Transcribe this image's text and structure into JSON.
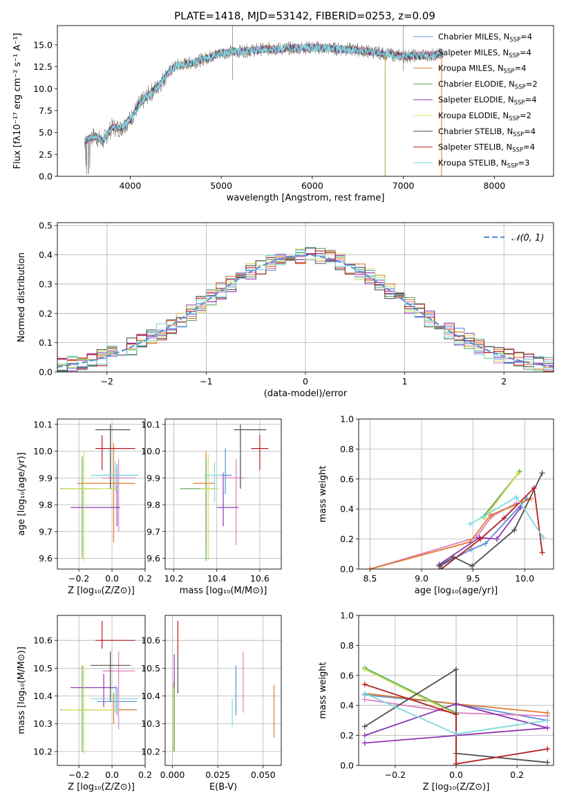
{
  "title": "PLATE=1418, MJD=53142, FIBERID=0253, z=0.09",
  "models": [
    {
      "label": "Chabrier MILES, N",
      "sub": "SSP",
      "suffix": "=4",
      "color": "#5b8fd6"
    },
    {
      "label": "Salpeter MILES, N",
      "sub": "SSP",
      "suffix": "=4",
      "color": "#e07cc1"
    },
    {
      "label": "Kroupa MILES, N",
      "sub": "SSP",
      "suffix": "=4",
      "color": "#e0792c"
    },
    {
      "label": "Chabrier ELODIE, N",
      "sub": "SSP",
      "suffix": "=2",
      "color": "#5fa65b"
    },
    {
      "label": "Salpeter ELODIE, N",
      "sub": "SSP",
      "suffix": "=4",
      "color": "#8e35b0"
    },
    {
      "label": "Kroupa ELODIE, N",
      "sub": "SSP",
      "suffix": "=2",
      "color": "#d3e05a"
    },
    {
      "label": "Chabrier STELIB, N",
      "sub": "SSP",
      "suffix": "=4",
      "color": "#4d4d4d"
    },
    {
      "label": "Salpeter STELIB, N",
      "sub": "SSP",
      "suffix": "=4",
      "color": "#b41b1b"
    },
    {
      "label": "Kroupa STELIB, N",
      "sub": "SSP",
      "suffix": "=3",
      "color": "#7dd9dd"
    }
  ],
  "chart_data": [
    {
      "id": "spectrum",
      "type": "line",
      "xlabel": "wavelength [Angstrom, rest frame]",
      "ylabel": "Flux [fλ10⁻¹⁷ erg cm⁻² s⁻¹ A⁻¹]",
      "xlim": [
        3200,
        8650
      ],
      "ylim": [
        0,
        17.2
      ],
      "xticks": [
        4000,
        5000,
        6000,
        7000,
        8000
      ],
      "yticks": [
        0.0,
        2.5,
        5.0,
        7.5,
        10.0,
        12.5,
        15.0
      ],
      "continuum": {
        "x": [
          3500,
          3600,
          3700,
          3800,
          3900,
          4000,
          4100,
          4200,
          4300,
          4400,
          4500,
          4700,
          5000,
          5500,
          6000,
          6500,
          7000,
          7400
        ],
        "y": [
          4.0,
          4.6,
          4.0,
          5.6,
          5.5,
          6.5,
          8.2,
          9.3,
          10.2,
          11.6,
          12.6,
          13.0,
          14.1,
          14.5,
          14.7,
          14.4,
          13.7,
          13.9
        ]
      }
    },
    {
      "id": "residuals",
      "type": "line",
      "xlabel": "(data-model)/error",
      "ylabel": "Normed distribution",
      "xlim": [
        -2.5,
        2.5
      ],
      "ylim": [
        0,
        0.51
      ],
      "xticks": [
        -2,
        -1,
        0,
        1,
        2
      ],
      "yticks": [
        0.0,
        0.1,
        0.2,
        0.3,
        0.4,
        0.5
      ],
      "legend": "𝒩(0, 1)",
      "legend_position": "top-right",
      "gaussian": {
        "mu": 0,
        "sigma": 1
      }
    },
    {
      "id": "age-vs-Z",
      "type": "scatter",
      "xlabel": "Z [log₁₀(Z/Z⊙)]",
      "ylabel": "age  [log₁₀(age/yr)]",
      "xlim": [
        -0.33,
        0.2
      ],
      "ylim": [
        9.56,
        10.12
      ],
      "xticks": [
        -0.2,
        0.0,
        0.2
      ],
      "yticks": [
        9.6,
        9.7,
        9.8,
        9.9,
        10.0,
        10.1
      ],
      "points": [
        {
          "x": 0.03,
          "xerr": [
            0.12,
            0.12
          ],
          "y": 9.91,
          "yerr": [
            0.07,
            0.04
          ],
          "model": 0
        },
        {
          "x": 0.04,
          "xerr": [
            0.1,
            0.1
          ],
          "y": 9.9,
          "yerr": [
            0.2,
            0.07
          ],
          "model": 1
        },
        {
          "x": 0.01,
          "xerr": [
            0.22,
            0.13
          ],
          "y": 9.88,
          "yerr": [
            0.22,
            0.15
          ],
          "model": 2
        },
        {
          "x": -0.18,
          "xerr": [
            0.13,
            0.1
          ],
          "y": 9.86,
          "yerr": [
            0.26,
            0.12
          ],
          "model": 3
        },
        {
          "x": 0.03,
          "xerr": [
            0.28,
            0.02
          ],
          "y": 9.79,
          "yerr": [
            0.07,
            0.08
          ],
          "model": 4
        },
        {
          "x": -0.17,
          "xerr": [
            0.13,
            0.21
          ],
          "y": 9.86,
          "yerr": [
            0.27,
            0.14
          ],
          "model": 5
        },
        {
          "x": -0.01,
          "xerr": [
            0.09,
            0.12
          ],
          "y": 10.08,
          "yerr": [
            0.22,
            0.02
          ],
          "model": 6
        },
        {
          "x": -0.06,
          "xerr": [
            0.04,
            0.2
          ],
          "y": 10.01,
          "yerr": [
            0.08,
            0.05
          ],
          "model": 7
        },
        {
          "x": 0.02,
          "xerr": [
            0.15,
            0.14
          ],
          "y": 9.91,
          "yerr": [
            0.06,
            0.05
          ],
          "model": 8
        }
      ]
    },
    {
      "id": "age-vs-mass",
      "type": "scatter",
      "xlabel": "mass [log₁₀(M/M⊙)]",
      "ylabel": "",
      "xlim": [
        10.16,
        10.7
      ],
      "ylim": [
        9.56,
        10.12
      ],
      "xticks": [
        10.2,
        10.4,
        10.6
      ],
      "yticks": [
        9.6,
        9.7,
        9.8,
        9.9,
        10.0,
        10.1
      ],
      "points": [
        {
          "x": 10.44,
          "xerr": [
            0.04,
            0.03
          ],
          "y": 9.91,
          "yerr": [
            0.07,
            0.1
          ],
          "model": 0
        },
        {
          "x": 10.49,
          "xerr": [
            0.05,
            0.04
          ],
          "y": 9.9,
          "yerr": [
            0.25,
            0.07
          ],
          "model": 1
        },
        {
          "x": 10.35,
          "xerr": [
            0.06,
            0.04
          ],
          "y": 9.88,
          "yerr": [
            0.25,
            0.12
          ],
          "model": 2
        },
        {
          "x": 10.35,
          "xerr": [
            0.12,
            0.04
          ],
          "y": 9.86,
          "yerr": [
            0.27,
            0.11
          ],
          "model": 3
        },
        {
          "x": 10.43,
          "xerr": [
            0.03,
            0.07
          ],
          "y": 9.79,
          "yerr": [
            0.07,
            0.13
          ],
          "model": 4
        },
        {
          "x": 10.36,
          "xerr": [
            0.04,
            0.05
          ],
          "y": 9.86,
          "yerr": [
            0.27,
            0.13
          ],
          "model": 5
        },
        {
          "x": 10.51,
          "xerr": [
            0.03,
            0.12
          ],
          "y": 10.08,
          "yerr": [
            0.22,
            0.02
          ],
          "model": 6
        },
        {
          "x": 10.6,
          "xerr": [
            0.04,
            0.04
          ],
          "y": 10.01,
          "yerr": [
            0.08,
            0.05
          ],
          "model": 7
        },
        {
          "x": 10.39,
          "xerr": [
            0.05,
            0.04
          ],
          "y": 9.91,
          "yerr": [
            0.1,
            0.05
          ],
          "model": 8
        }
      ]
    },
    {
      "id": "massweight-vs-age",
      "type": "line",
      "xlabel": "age  [log₁₀(age/yr)]",
      "ylabel": "mass weight",
      "xlim": [
        8.39,
        10.28
      ],
      "ylim": [
        0,
        1
      ],
      "xticks": [
        8.5,
        9.0,
        9.5,
        10.0
      ],
      "yticks": [
        0.0,
        0.2,
        0.4,
        0.6,
        0.8,
        1.0
      ],
      "series": [
        {
          "model": 0,
          "x": [
            9.18,
            9.48,
            9.62,
            10.02
          ],
          "y": [
            0.02,
            0.13,
            0.17,
            0.47
          ]
        },
        {
          "model": 1,
          "x": [
            8.5,
            9.53,
            9.68,
            9.92
          ],
          "y": [
            0.0,
            0.21,
            0.35,
            0.44
          ]
        },
        {
          "model": 2,
          "x": [
            8.5,
            9.47,
            9.67,
            10.06
          ],
          "y": [
            0.0,
            0.18,
            0.36,
            0.47
          ]
        },
        {
          "model": 3,
          "x": [
            9.6,
            9.95
          ],
          "y": [
            0.35,
            0.65
          ]
        },
        {
          "model": 4,
          "x": [
            9.17,
            9.56,
            9.73,
            9.96
          ],
          "y": [
            0.03,
            0.21,
            0.2,
            0.41
          ]
        },
        {
          "model": 5,
          "x": [
            9.61,
            9.94
          ],
          "y": [
            0.34,
            0.64
          ]
        },
        {
          "model": 6,
          "x": [
            9.17,
            9.31,
            9.49,
            9.9,
            10.17
          ],
          "y": [
            0.02,
            0.08,
            0.02,
            0.26,
            0.64
          ]
        },
        {
          "model": 7,
          "x": [
            9.19,
            9.57,
            9.8,
            10.09,
            10.17
          ],
          "y": [
            0.0,
            0.2,
            0.34,
            0.54,
            0.11
          ]
        },
        {
          "model": 8,
          "x": [
            9.47,
            9.6,
            9.92,
            10.18
          ],
          "y": [
            0.3,
            0.35,
            0.48,
            0.21
          ]
        }
      ]
    },
    {
      "id": "mass-vs-Z",
      "type": "scatter",
      "xlabel": "Z [log₁₀(Z/Z⊙)]",
      "ylabel": "mass [log₁₀(M/M⊙)]",
      "xlim": [
        -0.33,
        0.2
      ],
      "ylim": [
        10.15,
        10.69
      ],
      "xticks": [
        -0.2,
        0.0,
        0.2
      ],
      "yticks": [
        10.2,
        10.3,
        10.4,
        10.5,
        10.6
      ],
      "points": [
        {
          "x": 0.03,
          "xerr": [
            0.12,
            0.12
          ],
          "y": 10.38,
          "yerr": [
            0.05,
            0.05
          ],
          "model": 0
        },
        {
          "x": 0.04,
          "xerr": [
            0.1,
            0.1
          ],
          "y": 10.49,
          "yerr": [
            0.21,
            0.07
          ],
          "model": 1
        },
        {
          "x": 0.01,
          "xerr": [
            0.22,
            0.14
          ],
          "y": 10.35,
          "yerr": [
            0.05,
            0.06
          ],
          "model": 2
        },
        {
          "x": -0.18,
          "xerr": [
            0.13,
            0.1
          ],
          "y": 10.35,
          "yerr": [
            0.15,
            0.16
          ],
          "model": 3
        },
        {
          "x": -0.05,
          "xerr": [
            0.2,
            0.08
          ],
          "y": 10.43,
          "yerr": [
            0.07,
            0.05
          ],
          "model": 4
        },
        {
          "x": -0.17,
          "xerr": [
            0.13,
            0.21
          ],
          "y": 10.35,
          "yerr": [
            0.16,
            0.16
          ],
          "model": 5
        },
        {
          "x": -0.01,
          "xerr": [
            0.12,
            0.12
          ],
          "y": 10.51,
          "yerr": [
            0.13,
            0.05
          ],
          "model": 6
        },
        {
          "x": -0.06,
          "xerr": [
            0.04,
            0.2
          ],
          "y": 10.6,
          "yerr": [
            0.03,
            0.07
          ],
          "model": 7
        },
        {
          "x": 0.02,
          "xerr": [
            0.15,
            0.14
          ],
          "y": 10.39,
          "yerr": [
            0.05,
            0.05
          ],
          "model": 8
        }
      ]
    },
    {
      "id": "mass-vs-EBV",
      "type": "scatter",
      "xlabel": "E(B-V)",
      "ylabel": "",
      "xlim": [
        -0.004,
        0.06
      ],
      "ylim": [
        10.15,
        10.69
      ],
      "xticks": [
        0.0,
        0.025,
        0.05
      ],
      "yticks": [
        10.2,
        10.3,
        10.4,
        10.5,
        10.6
      ],
      "points": [
        {
          "x": 0.035,
          "y": 10.42,
          "yerr": [
            0.09,
            0.09
          ],
          "model": 0
        },
        {
          "x": 0.039,
          "y": 10.45,
          "yerr": [
            0.11,
            0.11
          ],
          "model": 1
        },
        {
          "x": 0.056,
          "y": 10.34,
          "yerr": [
            0.09,
            0.1
          ],
          "model": 2
        },
        {
          "x": 0.001,
          "y": 10.33,
          "yerr": [
            0.13,
            0.14
          ],
          "model": 3
        },
        {
          "x": 0.001,
          "y": 10.48,
          "yerr": [
            0.05,
            0.07
          ],
          "model": 4
        },
        {
          "x": 0.0005,
          "y": 10.33,
          "yerr": [
            0.13,
            0.12
          ],
          "model": 5
        },
        {
          "x": 0.003,
          "y": 10.48,
          "yerr": [
            0.07,
            0.07
          ],
          "model": 6
        },
        {
          "x": 0.003,
          "y": 10.61,
          "yerr": [
            0.06,
            0.06
          ],
          "model": 7
        },
        {
          "x": 0.033,
          "y": 10.34,
          "yerr": [
            0.05,
            0.05
          ],
          "model": 8
        }
      ]
    },
    {
      "id": "massweight-vs-Z",
      "type": "line",
      "xlabel": "Z [log₁₀(Z/Z⊙)]",
      "ylabel": "mass weight",
      "xlim": [
        -0.32,
        0.32
      ],
      "ylim": [
        0,
        1
      ],
      "xticks": [
        -0.2,
        0.0,
        0.2
      ],
      "yticks": [
        0.0,
        0.2,
        0.4,
        0.6,
        0.8,
        1.0
      ],
      "series": [
        {
          "model": 0,
          "x": [
            -0.3,
            0.0,
            0.3
          ],
          "y": [
            0.47,
            0.41,
            0.3
          ]
        },
        {
          "model": 1,
          "x": [
            -0.3,
            0.0,
            0.3
          ],
          "y": [
            0.44,
            0.35,
            0.33
          ]
        },
        {
          "model": 2,
          "x": [
            -0.3,
            0.0,
            0.3
          ],
          "y": [
            0.48,
            0.41,
            0.35
          ]
        },
        {
          "model": 3,
          "x": [
            -0.3,
            0.0
          ],
          "y": [
            0.65,
            0.35
          ]
        },
        {
          "model": 4,
          "x": [
            -0.3,
            0.0,
            0.3,
            -0.3
          ],
          "y": [
            0.2,
            0.41,
            0.25,
            0.15
          ]
        },
        {
          "model": 5,
          "x": [
            -0.3,
            0.0
          ],
          "y": [
            0.64,
            0.34
          ]
        },
        {
          "model": 6,
          "x": [
            -0.3,
            0.0,
            0.0,
            0.3
          ],
          "y": [
            0.26,
            0.64,
            0.08,
            0.02
          ]
        },
        {
          "model": 7,
          "x": [
            -0.3,
            0.0,
            0.0,
            0.3
          ],
          "y": [
            0.54,
            0.34,
            0.01,
            0.11
          ]
        },
        {
          "model": 8,
          "x": [
            -0.3,
            0.0,
            0.3
          ],
          "y": [
            0.48,
            0.21,
            0.3
          ]
        }
      ]
    }
  ]
}
